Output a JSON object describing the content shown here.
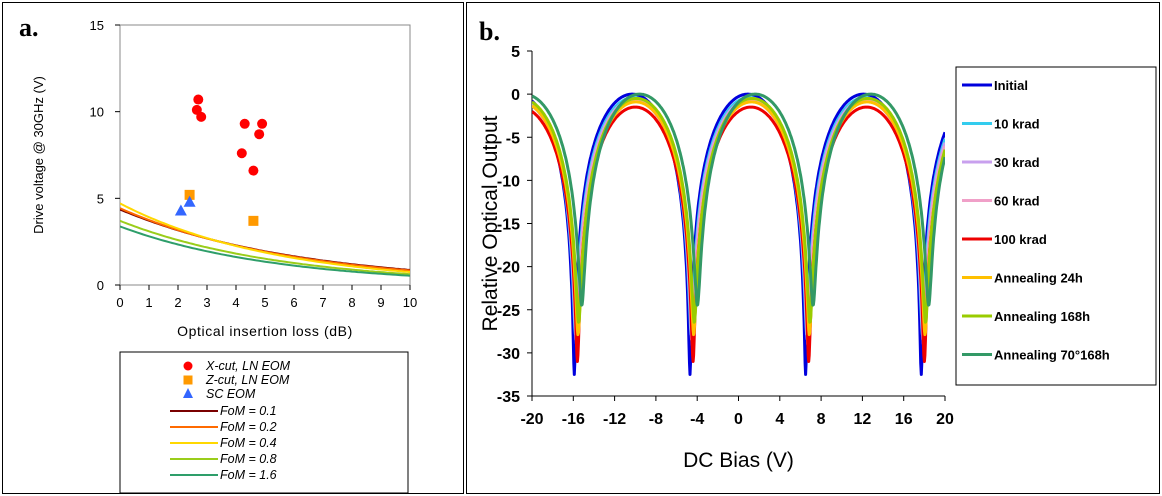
{
  "chart_data": [
    {
      "type": "scatter",
      "panel_label": "a.",
      "xlabel": "Optical insertion loss (dB)",
      "ylabel": "Drive voltage @ 30GHz (V)",
      "xlim": [
        0,
        10
      ],
      "ylim": [
        0,
        15
      ],
      "xticks": [
        "0",
        "1",
        "2",
        "3",
        "4",
        "5",
        "6",
        "7",
        "8",
        "9",
        "10"
      ],
      "yticks": [
        "0",
        "5",
        "10",
        "15"
      ],
      "legend_position": "bottom",
      "curves": [
        {
          "name": "FoM = 0.1",
          "color": "#7a0000",
          "fom": 0.1
        },
        {
          "name": "FoM = 0.2",
          "color": "#ff6a00",
          "fom": 0.2
        },
        {
          "name": "FoM = 0.4",
          "color": "#ffd800",
          "fom": 0.4
        },
        {
          "name": "FoM = 0.8",
          "color": "#9acd1a",
          "fom": 0.8
        },
        {
          "name": "FoM = 1.6",
          "color": "#2e9e6a",
          "fom": 1.6
        }
      ],
      "series": [
        {
          "name": "X-cut, LN EOM",
          "color": "#ff0000",
          "marker": "circle",
          "points": [
            [
              2.7,
              10.7
            ],
            [
              2.65,
              10.1
            ],
            [
              2.8,
              9.7
            ],
            [
              4.3,
              9.3
            ],
            [
              4.9,
              9.3
            ],
            [
              4.8,
              8.7
            ],
            [
              4.2,
              7.6
            ],
            [
              4.6,
              6.6
            ]
          ]
        },
        {
          "name": "Z-cut, LN EOM",
          "color": "#ff9900",
          "marker": "square",
          "points": [
            [
              2.4,
              5.2
            ],
            [
              4.6,
              3.7
            ]
          ]
        },
        {
          "name": "SC EOM",
          "color": "#3366ff",
          "marker": "triangle",
          "points": [
            [
              2.1,
              4.3
            ],
            [
              2.4,
              4.8
            ]
          ]
        }
      ]
    },
    {
      "type": "line",
      "panel_label": "b.",
      "xlabel": "DC Bias (V)",
      "ylabel": "Relative Optical Output",
      "xlim": [
        -20,
        20
      ],
      "ylim": [
        -35,
        5
      ],
      "xticks": [
        "-20",
        "-16",
        "-12",
        "-8",
        "-4",
        "0",
        "4",
        "8",
        "12",
        "16",
        "20"
      ],
      "yticks": [
        "5",
        "0",
        "-5",
        "-10",
        "-15",
        "-20",
        "-25",
        "-30",
        "-35"
      ],
      "legend_position": "right",
      "series": [
        {
          "name": "Initial",
          "color": "#0000dd",
          "shift": 0.3,
          "peak": 0.0,
          "depth": -32.5
        },
        {
          "name": "10 krad",
          "color": "#33ccee",
          "shift": 0.5,
          "peak": -0.4,
          "depth": -27.5
        },
        {
          "name": "30 krad",
          "color": "#c8a0ee",
          "shift": 0.6,
          "peak": -0.6,
          "depth": -28.0
        },
        {
          "name": "60 krad",
          "color": "#f0a0c8",
          "shift": 0.7,
          "peak": -0.8,
          "depth": -28.5
        },
        {
          "name": "100 krad",
          "color": "#ee0000",
          "shift": 0.8,
          "peak": -1.5,
          "depth": -29.5
        },
        {
          "name": "Annealing 24h",
          "color": "#ffc000",
          "shift": 0.9,
          "peak": -0.9,
          "depth": -27.0
        },
        {
          "name": "Annealing 168h",
          "color": "#99cc00",
          "shift": 1.0,
          "peak": -0.5,
          "depth": -26.0
        },
        {
          "name": "Annealing 70°168h",
          "color": "#339966",
          "shift": 1.5,
          "peak": 0.0,
          "depth": -24.5
        }
      ],
      "period_V": 11.2,
      "peaks_V": [
        -10.3,
        0.9,
        12.1
      ]
    }
  ]
}
